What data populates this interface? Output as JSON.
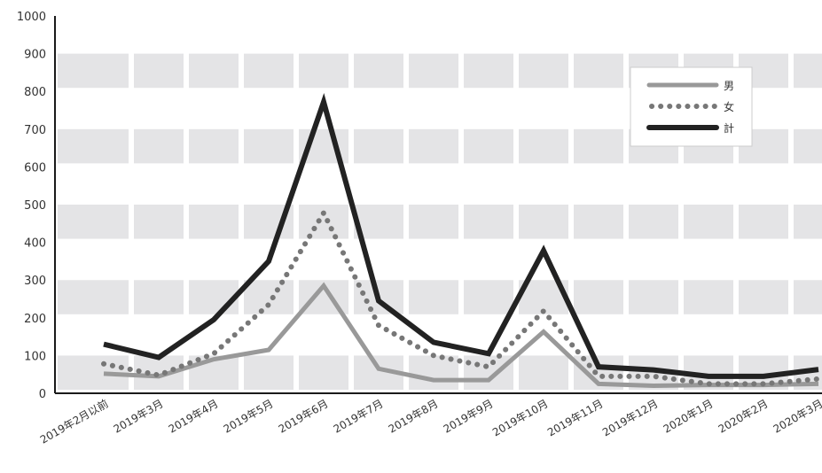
{
  "chart_data": {
    "type": "line",
    "title": "",
    "xlabel": "",
    "ylabel": "",
    "ylim": [
      0,
      1000
    ],
    "yticks": [
      0,
      100,
      200,
      300,
      400,
      500,
      600,
      700,
      800,
      900,
      1000
    ],
    "categories": [
      "2019年2月以前",
      "2019年3月",
      "2019年4月",
      "2019年5月",
      "2019年6月",
      "2019年7月",
      "2019年8月",
      "2019年9月",
      "2019年10月",
      "2019年11月",
      "2019年12月",
      "2020年1月",
      "2020年2月",
      "2020年3月"
    ],
    "series": [
      {
        "name": "男",
        "color": "#999999",
        "style": "solid",
        "values": [
          52,
          45,
          90,
          115,
          285,
          65,
          35,
          35,
          163,
          25,
          20,
          22,
          22,
          25
        ]
      },
      {
        "name": "女",
        "color": "#777777",
        "style": "dotted",
        "values": [
          78,
          48,
          105,
          235,
          478,
          180,
          100,
          70,
          218,
          45,
          45,
          25,
          25,
          38
        ]
      },
      {
        "name": "計",
        "color": "#222222",
        "style": "solid",
        "values": [
          130,
          95,
          195,
          350,
          772,
          245,
          135,
          105,
          378,
          70,
          62,
          45,
          45,
          63
        ]
      }
    ],
    "grid": true,
    "legend_position": "top-right"
  }
}
